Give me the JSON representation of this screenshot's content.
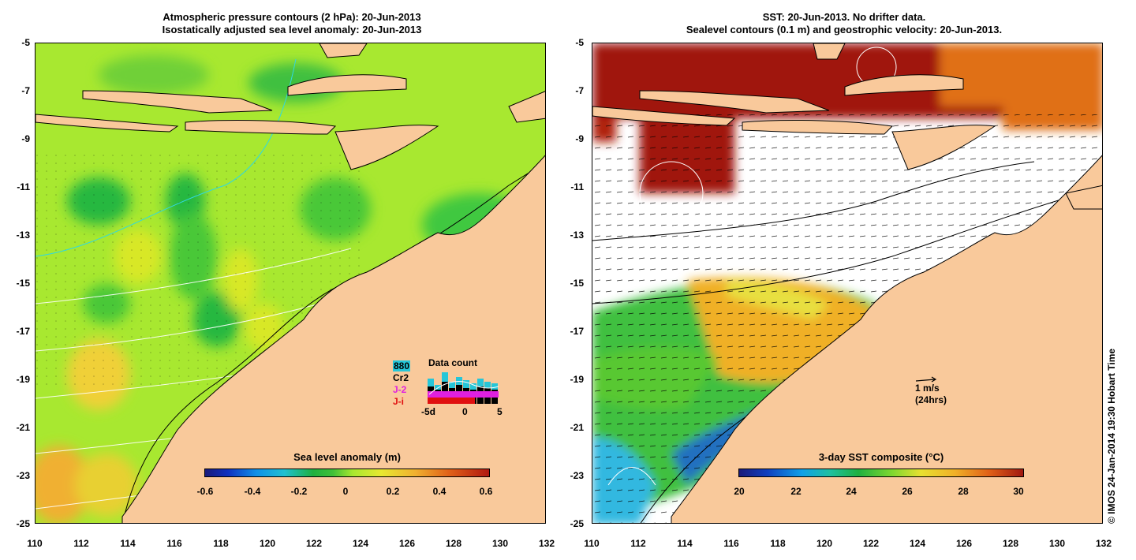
{
  "left_panel": {
    "title_line1": "Atmospheric pressure contours (2 hPa): 20-Jun-2013",
    "title_line2": "Isostatically adjusted sea level anomaly: 20-Jun-2013",
    "colorbar": {
      "title": "Sea level anomaly (m)",
      "min": -0.6,
      "max": 0.6,
      "ticks": [
        "-0.6",
        "-0.4",
        "-0.2",
        "0",
        "0.2",
        "0.4",
        "0.6"
      ]
    },
    "data_count": {
      "title": "Data count",
      "sources": [
        {
          "label": "880",
          "color": "#26c6d8"
        },
        {
          "label": "Cr2",
          "color": "#000000"
        },
        {
          "label": "J-2",
          "color": "#e020e0"
        },
        {
          "label": "J-i",
          "color": "#e01010"
        }
      ],
      "axis_ticks": [
        "-5d",
        "0",
        "5"
      ]
    }
  },
  "right_panel": {
    "title_line1": "SST: 20-Jun-2013. No drifter data.",
    "title_line2": "Sealevel contours (0.1 m) and geostrophic velocity: 20-Jun-2013.",
    "colorbar": {
      "title": "3-day SST composite (°C)",
      "min": 20,
      "max": 30,
      "ticks": [
        "20",
        "22",
        "24",
        "26",
        "28",
        "30"
      ]
    },
    "velocity_scale": {
      "label": "1 m/s",
      "sublabel": "(24hrs)"
    }
  },
  "axes": {
    "lat_ticks": [
      "-5",
      "-7",
      "-9",
      "-11",
      "-13",
      "-15",
      "-17",
      "-19",
      "-21",
      "-23",
      "-25"
    ],
    "lon_ticks": [
      "110",
      "112",
      "114",
      "116",
      "118",
      "120",
      "122",
      "124",
      "126",
      "128",
      "130",
      "132"
    ],
    "lat_range": [
      -25,
      -5
    ],
    "lon_range": [
      110,
      132
    ]
  },
  "copyright": "© IMOS 24-Jan-2014 19:30 Hobart Time",
  "colors": {
    "land": "#f9c99b",
    "sla_base": "#a8e830",
    "no_data": "#ffffff"
  }
}
